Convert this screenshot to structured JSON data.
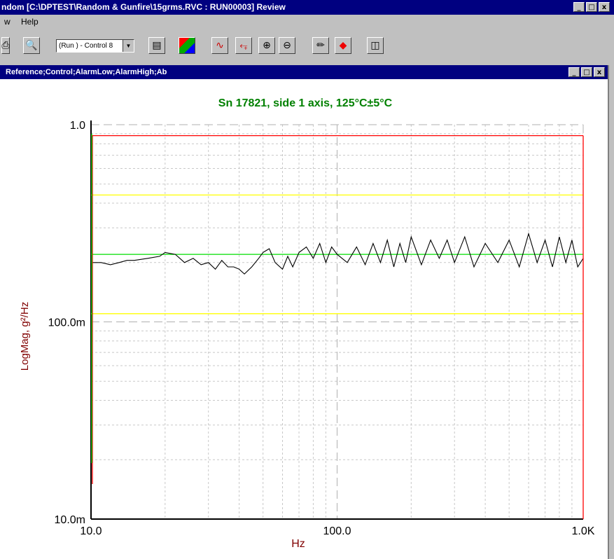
{
  "window": {
    "title": "ndom [C:\\DPTEST\\Random & Gunfire\\15grms.RVC : RUN00003] Review",
    "controls": [
      "_",
      "□",
      "x"
    ]
  },
  "menu": {
    "view_fragment": "w",
    "help": "Help"
  },
  "toolbar": {
    "run_combo": "(Run ) - Control 8",
    "icons": [
      "print-icon",
      "print-preview-icon",
      "table-icon",
      "color-palette-icon",
      "single-cursor-icon",
      "dual-cursor-icon",
      "zoom-in-icon",
      "zoom-out-icon",
      "edit-pencil-icon",
      "marker-icon",
      "export-icon"
    ]
  },
  "child_window": {
    "title": "Reference;Control;AlarmLow;AlarmHigh;Ab",
    "controls": [
      "_",
      "□",
      "x"
    ]
  },
  "chart_data": {
    "type": "line",
    "title": "Sn 17821,  side 1 axis, 125°C±5°C",
    "xlabel": "Hz",
    "ylabel": "LogMag, g²/Hz",
    "x_scale": "log",
    "y_scale": "log",
    "xlim": [
      10,
      1000
    ],
    "ylim": [
      0.01,
      1.0
    ],
    "x_ticks": [
      "10.0",
      "100.0",
      "1.0K"
    ],
    "y_ticks": [
      "1.0",
      "100.0m",
      "10.0m"
    ],
    "grid": true,
    "colors": {
      "title": "#008000",
      "axis_label": "#800000",
      "control": "#000000",
      "reference": "#00dd00",
      "alarm": "#ffff00",
      "abort": "#ff0000"
    },
    "series": [
      {
        "name": "Reference",
        "x": [
          10,
          1000
        ],
        "y": [
          0.22,
          0.22
        ]
      },
      {
        "name": "AlarmLow",
        "x": [
          10,
          1000
        ],
        "y": [
          0.11,
          0.11
        ]
      },
      {
        "name": "AlarmHigh",
        "x": [
          10,
          1000
        ],
        "y": [
          0.44,
          0.44
        ]
      },
      {
        "name": "Ab",
        "x": [
          10,
          1000
        ],
        "y": [
          0.88,
          0.88
        ]
      },
      {
        "name": "Control",
        "x": [
          10,
          11,
          12,
          13,
          14,
          15,
          17,
          19,
          20,
          22,
          24,
          26,
          28,
          30,
          32,
          34,
          36,
          38,
          40,
          42,
          45,
          48,
          50,
          53,
          56,
          60,
          63,
          66,
          70,
          75,
          80,
          85,
          90,
          95,
          100,
          110,
          120,
          130,
          140,
          150,
          160,
          170,
          180,
          190,
          200,
          220,
          240,
          260,
          280,
          300,
          330,
          360,
          400,
          450,
          500,
          550,
          600,
          650,
          700,
          750,
          800,
          850,
          900,
          950,
          1000
        ],
        "y": [
          0.2,
          0.2,
          0.195,
          0.2,
          0.205,
          0.205,
          0.21,
          0.215,
          0.225,
          0.22,
          0.2,
          0.21,
          0.195,
          0.2,
          0.185,
          0.205,
          0.19,
          0.19,
          0.185,
          0.175,
          0.19,
          0.21,
          0.225,
          0.235,
          0.2,
          0.185,
          0.215,
          0.19,
          0.225,
          0.24,
          0.21,
          0.25,
          0.2,
          0.24,
          0.22,
          0.2,
          0.24,
          0.195,
          0.25,
          0.2,
          0.26,
          0.19,
          0.25,
          0.2,
          0.27,
          0.195,
          0.26,
          0.21,
          0.26,
          0.2,
          0.27,
          0.19,
          0.25,
          0.2,
          0.26,
          0.19,
          0.28,
          0.2,
          0.26,
          0.19,
          0.27,
          0.2,
          0.26,
          0.19,
          0.21
        ]
      }
    ]
  }
}
